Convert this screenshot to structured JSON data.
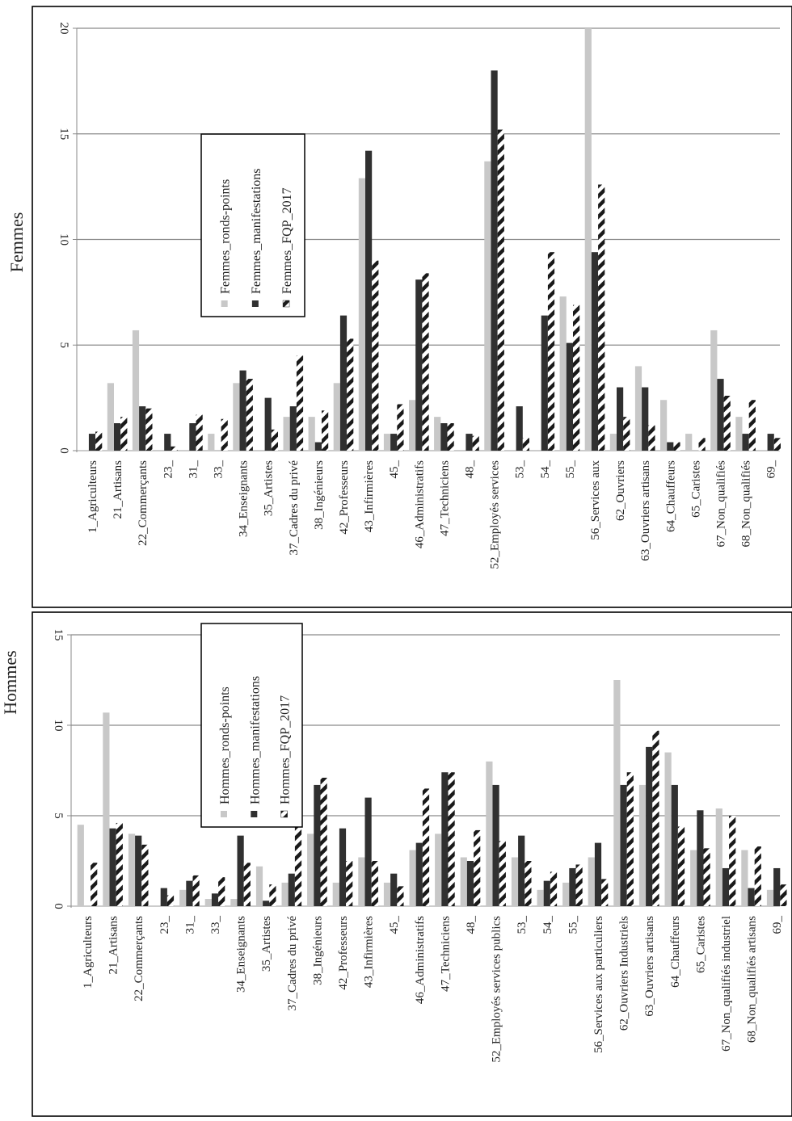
{
  "chart_data": [
    {
      "type": "bar",
      "title": "Femmes",
      "ylim": [
        0,
        20
      ],
      "yticks": [
        0,
        5,
        10,
        15,
        20
      ],
      "grid": true,
      "legend_position": "top-left",
      "categories": [
        "1_Agriculteurs",
        "21_Artisans",
        "22_Commerçants",
        "23_",
        "31_",
        "33_",
        "34_Enseignants",
        "35_Artistes",
        "37_Cadres du privé",
        "38_Ingénieurs",
        "42_Professeurs",
        "43_Infirmières",
        "45_",
        "46_Administratifs",
        "47_Techniciens",
        "48_",
        "52_Employés services",
        "53_",
        "54_",
        "55_",
        "56_Services aux",
        "62_Ouvriers",
        "63_Ouvriers artisans",
        "64_Chauffeurs",
        "65_Caristes",
        "67_Non_qualifiés",
        "68_Non_qualifiés",
        "69_"
      ],
      "series": [
        {
          "name": "Femmes_ronds-points",
          "values": [
            0,
            3.2,
            5.7,
            0,
            0,
            0.8,
            3.2,
            0,
            1.6,
            1.6,
            3.2,
            12.9,
            0.8,
            2.4,
            1.6,
            0,
            13.7,
            0,
            0,
            7.3,
            20,
            0.8,
            4.0,
            2.4,
            0.8,
            5.7,
            1.6,
            0
          ]
        },
        {
          "name": "Femmes_manifestations",
          "values": [
            0.8,
            1.3,
            2.1,
            0.8,
            1.3,
            0,
            3.8,
            2.5,
            2.1,
            0.4,
            6.4,
            14.2,
            0.8,
            8.1,
            1.3,
            0.8,
            18.0,
            2.1,
            6.4,
            5.1,
            9.4,
            3.0,
            3.0,
            0.4,
            0,
            3.4,
            0.8,
            0.8
          ]
        },
        {
          "name": "Femmes_FQP_2017",
          "values": [
            0.9,
            1.6,
            2.0,
            0.2,
            1.7,
            1.5,
            3.4,
            1.0,
            4.5,
            1.9,
            5.3,
            9.0,
            2.2,
            8.4,
            1.3,
            0.7,
            15.2,
            0.6,
            9.4,
            6.9,
            12.6,
            1.6,
            1.2,
            0.4,
            0.6,
            2.6,
            2.4,
            0.6
          ]
        }
      ]
    },
    {
      "type": "bar",
      "title": "Hommes",
      "ylim": [
        0,
        15
      ],
      "yticks": [
        0,
        5,
        10,
        15
      ],
      "grid": true,
      "legend_position": "top-left",
      "categories": [
        "1_Agriculteurs",
        "21_Artisans",
        "22_Commerçants",
        "23_",
        "31_",
        "33_",
        "34_Enseignants",
        "35_Artistes",
        "37_Cadres du privé",
        "38_Ingénieurs",
        "42_Professeurs",
        "43_Infirmières",
        "45_",
        "46_Administratifs",
        "47_Techniciens",
        "48_",
        "52_Employés services publics",
        "53_",
        "54_",
        "55_",
        "56_Services aux particuliers",
        "62_Ouvriers Industriels",
        "63_Ouvriers artisans",
        "64_Chauffeurs",
        "65_Caristes",
        "67_Non_qualifiés industriel",
        "68_Non_qualifiés artisans",
        "69_"
      ],
      "series": [
        {
          "name": "Hommes_ronds-points",
          "values": [
            4.5,
            10.7,
            4.0,
            0,
            0.9,
            0.4,
            0.4,
            2.2,
            1.3,
            4.0,
            1.3,
            2.7,
            1.3,
            3.1,
            4.0,
            2.7,
            8.0,
            2.7,
            0.9,
            1.3,
            2.7,
            12.5,
            6.7,
            8.5,
            3.1,
            5.4,
            3.1,
            0.9
          ]
        },
        {
          "name": "Hommes_manifestations",
          "values": [
            0,
            4.3,
            3.9,
            1.0,
            1.4,
            0.7,
            3.9,
            0.3,
            1.8,
            6.7,
            4.3,
            6.0,
            1.8,
            3.5,
            7.4,
            2.5,
            6.7,
            3.9,
            1.4,
            2.1,
            3.5,
            6.7,
            8.8,
            6.7,
            5.3,
            2.1,
            1.0,
            2.1
          ]
        },
        {
          "name": "Hommes_FQP_2017",
          "values": [
            2.4,
            4.6,
            3.4,
            0.6,
            1.7,
            1.6,
            2.4,
            1.2,
            5.0,
            7.1,
            2.5,
            2.5,
            1.1,
            6.5,
            7.4,
            4.2,
            3.6,
            2.5,
            1.9,
            2.3,
            1.5,
            7.4,
            9.7,
            4.4,
            3.2,
            5.0,
            3.3,
            1.2
          ]
        }
      ]
    }
  ]
}
